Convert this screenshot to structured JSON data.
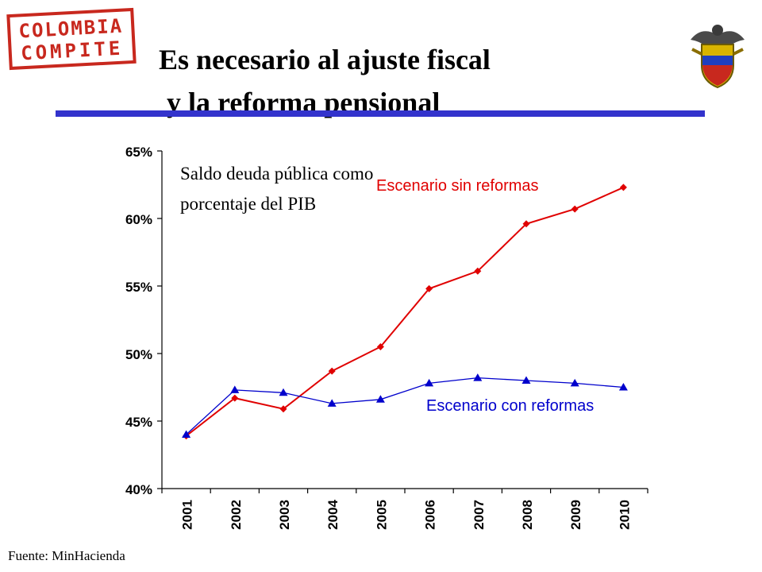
{
  "logo": {
    "line1": "COLOMBIA",
    "line2": "COMPITE",
    "color": "#c8281e"
  },
  "title": {
    "line1": "Es necesario al ajuste fiscal",
    "line2": "y la reforma pensional"
  },
  "accent_color": "#3333cc",
  "subtitle": "Saldo deuda pública como porcentaje del PIB",
  "source": "Fuente: MinHacienda",
  "crest_icon": "colombia-coat-of-arms",
  "chart_data": {
    "type": "line",
    "categories": [
      "2001",
      "2002",
      "2003",
      "2004",
      "2005",
      "2006",
      "2007",
      "2008",
      "2009",
      "2010"
    ],
    "ylim": [
      40,
      65
    ],
    "yticks": [
      40,
      45,
      50,
      55,
      60,
      65
    ],
    "ytick_labels": [
      "40%",
      "45%",
      "50%",
      "55%",
      "60%",
      "65%"
    ],
    "grid": false,
    "series": [
      {
        "name": "Escenario sin reformas",
        "values": [
          43.9,
          46.7,
          45.9,
          48.7,
          50.5,
          54.8,
          56.1,
          59.6,
          60.7,
          62.3
        ],
        "color": "#e00000",
        "marker": "diamond"
      },
      {
        "name": "Escenario con reformas",
        "values": [
          44.0,
          47.3,
          47.1,
          46.3,
          46.6,
          47.8,
          48.2,
          48.0,
          47.8,
          47.5
        ],
        "color": "#0000cc",
        "marker": "triangle"
      }
    ]
  }
}
